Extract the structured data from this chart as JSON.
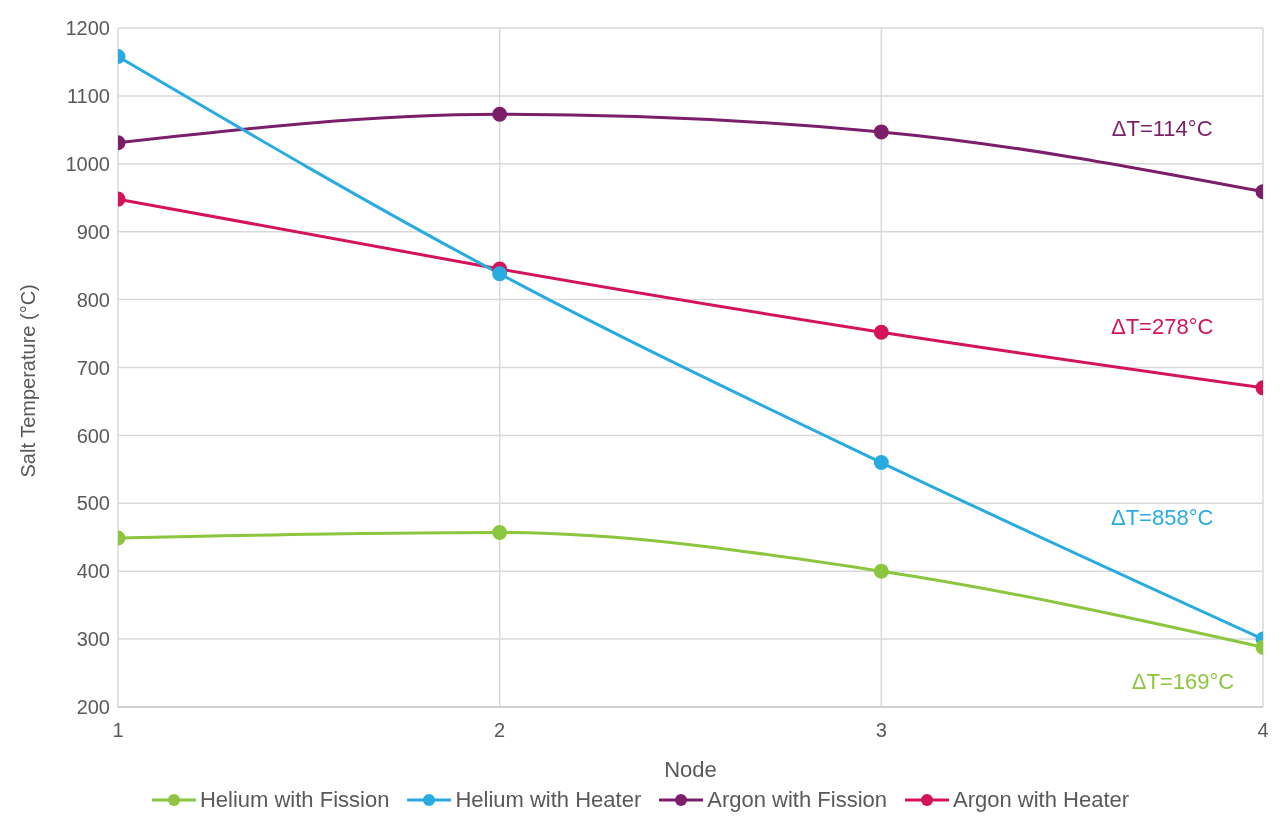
{
  "chart_data": {
    "type": "line",
    "xlabel": "Node",
    "ylabel": "Salt Temperature (°C)",
    "x": [
      1,
      2,
      3,
      4
    ],
    "xlim": [
      1,
      4
    ],
    "xticks": [
      1,
      2,
      3,
      4
    ],
    "ylim": [
      200,
      1200
    ],
    "yticks": [
      200,
      300,
      400,
      500,
      600,
      700,
      800,
      900,
      1000,
      1100,
      1200
    ],
    "grid": true,
    "legend": "bottom",
    "marker": "circle",
    "line_style": "solid",
    "series": [
      {
        "name": "Helium with Fission",
        "color": "#8cc63f",
        "values": [
          449,
          457,
          400,
          288
        ]
      },
      {
        "name": "Helium with Heater",
        "color": "#29abe2",
        "values": [
          1158,
          838,
          560,
          300
        ]
      },
      {
        "name": "Argon with Fission",
        "color": "#7b1f6a",
        "values": [
          1031,
          1073,
          1047,
          959
        ]
      },
      {
        "name": "Argon with Heater",
        "color": "#d4145a",
        "values": [
          948,
          845,
          752,
          670
        ]
      }
    ],
    "annotations": [
      "ΔT=169°C",
      "ΔT=858°C",
      "ΔT=114°C",
      "ΔT=278°C"
    ]
  }
}
